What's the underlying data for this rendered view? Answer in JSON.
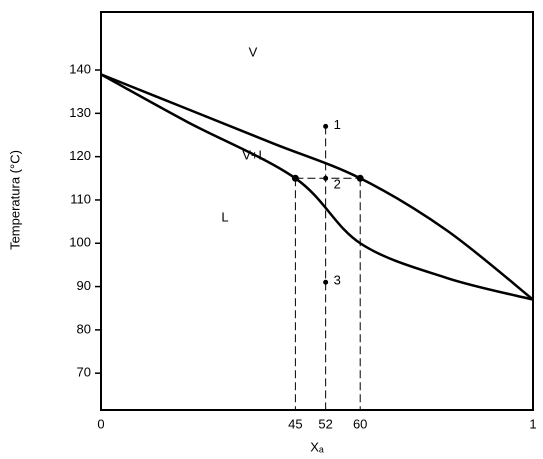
{
  "chart_data": {
    "type": "line",
    "y_label": "Temperatura (°C)",
    "x_label": "Xₐ",
    "xlim": [
      0,
      1
    ],
    "ylim": [
      61.5,
      153.4
    ],
    "xticks": [
      0,
      {
        "value": 0.45,
        "label": "45"
      },
      {
        "value": 0.52,
        "label": "52"
      },
      {
        "value": 0.6,
        "label": "60"
      },
      1
    ],
    "yticks": [
      70,
      80,
      90,
      100,
      110,
      120,
      130,
      140
    ],
    "series": [
      {
        "name": "V",
        "color": "#000000",
        "x": [
          0,
          0.2,
          0.4,
          0.6,
          0.8,
          1
        ],
        "values": [
          139,
          131,
          123,
          115,
          103,
          87
        ]
      },
      {
        "name": "L",
        "color": "#000000",
        "x": [
          0,
          0.2,
          0.45,
          0.6,
          0.8,
          1
        ],
        "values": [
          139,
          128,
          115,
          100,
          92,
          87
        ]
      }
    ],
    "regions": [
      "V+L"
    ],
    "tie_line": {
      "y": 115,
      "x": [
        0.45,
        0.6
      ]
    },
    "points": [
      {
        "x": 0.52,
        "y": 127,
        "label": "1"
      },
      {
        "x": 0.52,
        "y": 115,
        "label": "2"
      },
      {
        "x": 0.52,
        "y": 91,
        "label": "3"
      }
    ]
  }
}
